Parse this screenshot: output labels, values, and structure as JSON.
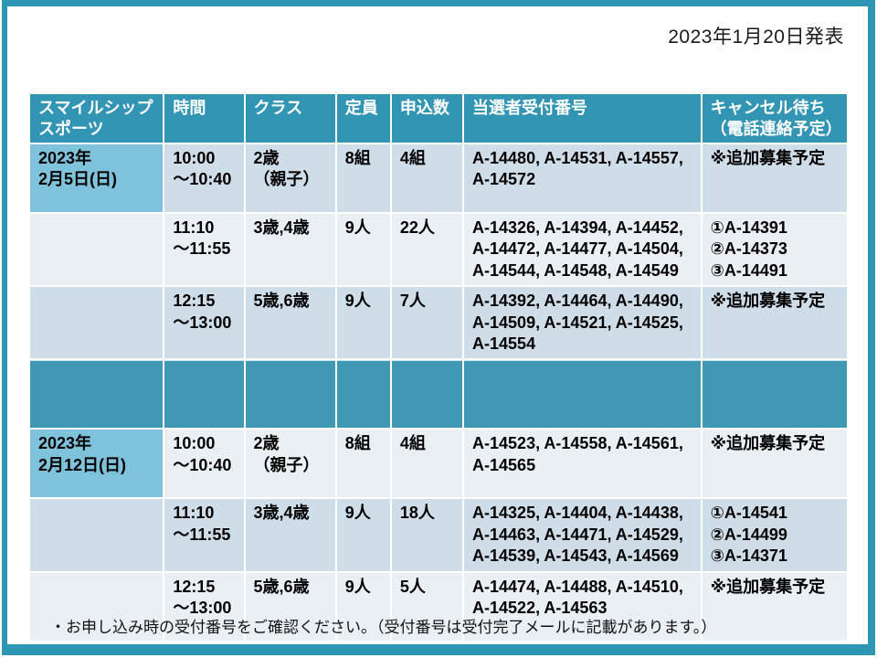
{
  "announce_date": "2023年1月20日発表",
  "footer_note": "・お申し込み時の受付番号をご確認ください。（受付番号は受付完了メールに記載があります。）",
  "colors": {
    "frame": "#2E96B5",
    "header_bg": "#3295B3",
    "header_text": "#FFFFFF",
    "date_cell_bg": "#7FC2DC",
    "band_dark": "#CFDDE8",
    "band_light": "#E9EFF3",
    "group_divider": "#3F99B5",
    "body_text": "#000000"
  },
  "table": {
    "columns": [
      "スマイルシップ\nスポーツ",
      "時間",
      "クラス",
      "定員",
      "申込数",
      "当選者受付番号",
      "キャンセル待ち\n（電話連絡予定）"
    ],
    "groups": [
      {
        "date": "2023年\n2月5日(日)",
        "rows": [
          {
            "time": "10:00\n～10:40",
            "class": "2歳\n（親子）",
            "capacity": "8組",
            "applied": "4組",
            "winners": "A-14480, A-14531, A-14557,\nA-14572",
            "cancel": "※追加募集予定"
          },
          {
            "time": "11:10\n～11:55",
            "class": "3歳,4歳",
            "capacity": "9人",
            "applied": "22人",
            "winners": "A-14326, A-14394, A-14452,\nA-14472, A-14477, A-14504,\nA-14544, A-14548, A-14549",
            "cancel": "①A-14391\n②A-14373\n③A-14491"
          },
          {
            "time": "12:15\n～13:00",
            "class": "5歳,6歳",
            "capacity": "9人",
            "applied": "7人",
            "winners": "A-14392, A-14464, A-14490,\nA-14509, A-14521, A-14525,\nA-14554",
            "cancel": "※追加募集予定"
          }
        ]
      },
      {
        "date": "2023年\n2月12日(日)",
        "rows": [
          {
            "time": "10:00\n～10:40",
            "class": "2歳\n（親子）",
            "capacity": "8組",
            "applied": "4組",
            "winners": "A-14523, A-14558, A-14561,\nA-14565",
            "cancel": "※追加募集予定"
          },
          {
            "time": "11:10\n～11:55",
            "class": "3歳,4歳",
            "capacity": "9人",
            "applied": "18人",
            "winners": "A-14325, A-14404, A-14438,\nA-14463, A-14471, A-14529,\nA-14539, A-14543, A-14569",
            "cancel": "①A-14541\n②A-14499\n③A-14371"
          },
          {
            "time": "12:15\n～13:00",
            "class": "5歳,6歳",
            "capacity": "9人",
            "applied": "5人",
            "winners": "A-14474, A-14488, A-14510,\nA-14522, A-14563",
            "cancel": "※追加募集予定"
          }
        ]
      }
    ]
  }
}
